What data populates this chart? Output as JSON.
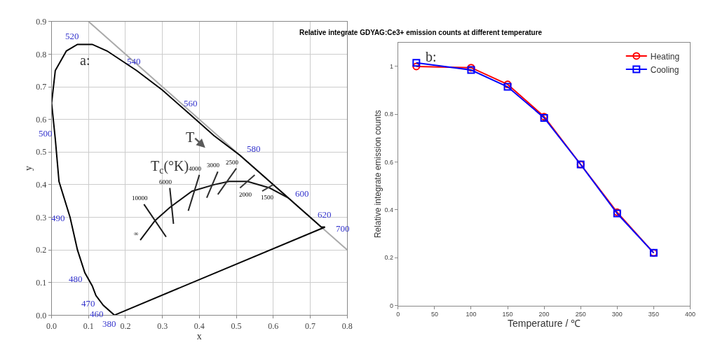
{
  "chart_data": [
    {
      "type": "line",
      "xlabel": "x",
      "ylabel": "y",
      "xlim": [
        0,
        0.8
      ],
      "ylim": [
        0,
        0.9
      ],
      "xticks": [
        {
          "value": 0,
          "label": "0.0"
        },
        0.1,
        0.2,
        0.3,
        0.4,
        0.5,
        0.6,
        0.7,
        0.8
      ],
      "yticks": [
        {
          "value": 0,
          "label": "0.0"
        },
        0.1,
        0.2,
        0.3,
        0.4,
        0.5,
        0.6,
        0.7,
        0.8,
        0.9
      ],
      "grid": true,
      "legend": false,
      "marker": "none",
      "series": [
        {
          "color": "#aaaaaa",
          "x": [
            0.1,
            0.8
          ],
          "values": [
            0.9,
            0.2
          ]
        },
        {
          "color": "#000000",
          "x": [
            0.17,
            0.14,
            0.12,
            0.11,
            0.09,
            0.07,
            0.05,
            0.02,
            0.01,
            0.0,
            0.01,
            0.04,
            0.07,
            0.11,
            0.15,
            0.23,
            0.3,
            0.37,
            0.44,
            0.51,
            0.58,
            0.63,
            0.67,
            0.69,
            0.72,
            0.73,
            0.74
          ],
          "values": [
            0.0,
            0.03,
            0.06,
            0.09,
            0.13,
            0.2,
            0.3,
            0.41,
            0.54,
            0.65,
            0.75,
            0.81,
            0.83,
            0.83,
            0.81,
            0.75,
            0.69,
            0.62,
            0.55,
            0.49,
            0.42,
            0.37,
            0.33,
            0.31,
            0.28,
            0.27,
            0.27
          ]
        },
        {
          "color": "#050505",
          "x": [
            0.17,
            0.74
          ],
          "values": [
            0.0,
            0.27
          ]
        },
        {
          "color": "#111111",
          "x": [
            0.24,
            0.28,
            0.32,
            0.38,
            0.44,
            0.48,
            0.53,
            0.59,
            0.64
          ],
          "values": [
            0.23,
            0.29,
            0.33,
            0.38,
            0.4,
            0.41,
            0.41,
            0.39,
            0.36
          ]
        },
        {
          "color": "#1a1a1a",
          "x": [
            0.25,
            0.31
          ],
          "values": [
            0.34,
            0.24
          ]
        },
        {
          "color": "#202020",
          "x": [
            0.32,
            0.33
          ],
          "values": [
            0.39,
            0.28
          ]
        },
        {
          "color": "#262626",
          "x": [
            0.4,
            0.37
          ],
          "values": [
            0.43,
            0.32
          ]
        },
        {
          "color": "#2c2c2c",
          "x": [
            0.45,
            0.42
          ],
          "values": [
            0.44,
            0.36
          ]
        },
        {
          "color": "#303030",
          "x": [
            0.5,
            0.45
          ],
          "values": [
            0.45,
            0.37
          ]
        },
        {
          "color": "#363636",
          "x": [
            0.55,
            0.51
          ],
          "values": [
            0.43,
            0.39
          ]
        },
        {
          "color": "#3c3c3c",
          "x": [
            0.6,
            0.57
          ],
          "values": [
            0.4,
            0.38
          ]
        }
      ],
      "annotations": [
        {
          "text": "520",
          "x": 0.07,
          "y": 0.83
        },
        {
          "text": "540",
          "x": 0.23,
          "y": 0.75
        },
        {
          "text": "560",
          "x": 0.37,
          "y": 0.62
        },
        {
          "text": "580",
          "x": 0.51,
          "y": 0.49
        },
        {
          "text": "600",
          "x": 0.63,
          "y": 0.37
        },
        {
          "text": "620",
          "x": 0.69,
          "y": 0.31
        },
        {
          "text": "700",
          "x": 0.74,
          "y": 0.27
        },
        {
          "text": "500",
          "x": 0.01,
          "y": 0.54
        },
        {
          "text": "490",
          "x": 0.05,
          "y": 0.3
        },
        {
          "text": "480",
          "x": 0.09,
          "y": 0.13
        },
        {
          "text": "470",
          "x": 0.12,
          "y": 0.06
        },
        {
          "text": "460",
          "x": 0.14,
          "y": 0.03
        },
        {
          "text": "380",
          "x": 0.17,
          "y": 0.0
        },
        {
          "text": "10000",
          "x": 0.25,
          "y": 0.34
        },
        {
          "text": "6000",
          "x": 0.32,
          "y": 0.39
        },
        {
          "text": "4000",
          "x": 0.4,
          "y": 0.43
        },
        {
          "text": "3000",
          "x": 0.45,
          "y": 0.44
        },
        {
          "text": "2500",
          "x": 0.5,
          "y": 0.45
        },
        {
          "text": "2000",
          "x": 0.51,
          "y": 0.39
        },
        {
          "text": "1500",
          "x": 0.57,
          "y": 0.38
        },
        {
          "text": "∞",
          "x": 0.24,
          "y": 0.23
        },
        "T$_{c}$(°K)",
        "T",
        "a:"
      ]
    },
    {
      "type": "line",
      "title": "Relative integrate GDYAG:Ce3+ emission counts at different temperature",
      "xlabel": "Temperature / ℃",
      "ylabel": "Relative integrate emission counts",
      "x": [
        25,
        100,
        150,
        200,
        250,
        300,
        350
      ],
      "xlim": [
        0,
        400
      ],
      "xticks": [
        0,
        50,
        100,
        150,
        200,
        250,
        300,
        350,
        400
      ],
      "ylim": [
        0,
        1.1
      ],
      "yticks": [
        0,
        0.2,
        0.4,
        0.6,
        0.8,
        1
      ],
      "grid": false,
      "legend": "top right",
      "series": [
        {
          "name": "Heating",
          "color": "#ff0000",
          "marker": "circle",
          "values": [
            1.0,
            0.995,
            0.925,
            0.79,
            0.59,
            0.39,
            0.22
          ]
        },
        {
          "name": "Cooling",
          "color": "#0000ff",
          "marker": "square",
          "values": [
            1.015,
            0.985,
            0.915,
            0.785,
            0.59,
            0.385,
            0.22
          ]
        }
      ],
      "annotations": [
        "b:"
      ]
    }
  ]
}
